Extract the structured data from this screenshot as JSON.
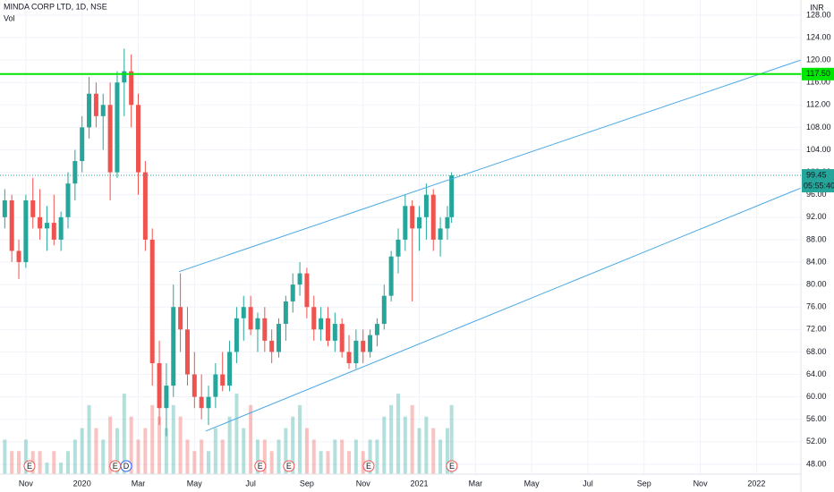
{
  "chart_data": {
    "type": "candlestick",
    "title": "MINDA CORP LTD, 1D, NSE",
    "volume_label": "Vol",
    "currency": "INR",
    "up_color": "#26a69a",
    "down_color": "#ef5350",
    "grid": true,
    "xlim": [
      -0.92,
      27.58
    ],
    "xticks": [
      {
        "value": 0,
        "label": "Nov"
      },
      {
        "value": 2,
        "label": "2020"
      },
      {
        "value": 4,
        "label": "Mar"
      },
      {
        "value": 6,
        "label": "May"
      },
      {
        "value": 8,
        "label": "Jul"
      },
      {
        "value": 10,
        "label": "Sep"
      },
      {
        "value": 12,
        "label": "Nov"
      },
      {
        "value": 14,
        "label": "2021"
      },
      {
        "value": 16,
        "label": "Mar"
      },
      {
        "value": 18,
        "label": "May"
      },
      {
        "value": 20,
        "label": "Jul"
      },
      {
        "value": 22,
        "label": "Sep"
      },
      {
        "value": 24,
        "label": "Nov"
      },
      {
        "value": 26,
        "label": "2022"
      }
    ],
    "ylim": [
      46.24,
      130.69
    ],
    "yticks": [
      {
        "value": 48,
        "label": "48.00"
      },
      {
        "value": 52,
        "label": "52.00"
      },
      {
        "value": 56,
        "label": "56.00"
      },
      {
        "value": 60,
        "label": "60.00"
      },
      {
        "value": 64,
        "label": "64.00"
      },
      {
        "value": 68,
        "label": "68.00"
      },
      {
        "value": 72,
        "label": "72.00"
      },
      {
        "value": 76,
        "label": "76.00"
      },
      {
        "value": 80,
        "label": "80.00"
      },
      {
        "value": 84,
        "label": "84.00"
      },
      {
        "value": 88,
        "label": "88.00"
      },
      {
        "value": 92,
        "label": "92.00"
      },
      {
        "value": 96,
        "label": "96.00"
      },
      {
        "value": 100,
        "label": "100.00"
      },
      {
        "value": 104,
        "label": "104.00"
      },
      {
        "value": 108,
        "label": "108.00"
      },
      {
        "value": 112,
        "label": "112.00"
      },
      {
        "value": 116,
        "label": "116.00"
      },
      {
        "value": 120,
        "label": "120.00"
      },
      {
        "value": 124,
        "label": "124.00"
      },
      {
        "value": 128,
        "label": "128.00"
      }
    ],
    "x": [
      -0.75,
      -0.5,
      -0.25,
      0,
      0.25,
      0.5,
      0.75,
      1,
      1.25,
      1.5,
      1.75,
      2,
      2.25,
      2.5,
      2.75,
      3,
      3.25,
      3.5,
      3.75,
      4,
      4.25,
      4.5,
      4.75,
      5,
      5.25,
      5.5,
      5.75,
      6,
      6.25,
      6.5,
      6.75,
      7,
      7.25,
      7.5,
      7.75,
      8,
      8.25,
      8.5,
      8.75,
      9,
      9.25,
      9.5,
      9.75,
      10,
      10.25,
      10.5,
      10.75,
      11,
      11.25,
      11.5,
      11.75,
      12,
      12.25,
      12.5,
      12.75,
      13,
      13.25,
      13.5,
      13.75,
      14,
      14.25,
      14.5,
      14.75,
      15,
      15.15
    ],
    "open": [
      92,
      95,
      86,
      84,
      95,
      92,
      90,
      91,
      88,
      92,
      98,
      102,
      108,
      114,
      110,
      112,
      100,
      116,
      118,
      112,
      100,
      88,
      66,
      58,
      62,
      76,
      72,
      64,
      60,
      58,
      60,
      64,
      62,
      68,
      74,
      76,
      72,
      74,
      70,
      68,
      73,
      77,
      80,
      82,
      76,
      72,
      74,
      70,
      73,
      68,
      66,
      70,
      68,
      71,
      73,
      78,
      85,
      88,
      94,
      90,
      92,
      96,
      88,
      90,
      92
    ],
    "high": [
      97,
      96,
      88,
      96,
      99,
      97,
      94,
      96,
      93,
      100,
      104,
      110,
      117,
      116,
      114,
      116,
      118,
      122,
      121,
      114,
      102,
      90,
      70,
      66,
      80,
      82,
      76,
      68,
      64,
      62,
      66,
      68,
      70,
      76,
      78,
      78,
      75,
      76,
      72,
      74,
      78,
      82,
      84,
      83,
      78,
      76,
      76,
      75,
      74,
      71,
      72,
      72,
      72,
      74,
      80,
      86,
      90,
      96,
      95,
      94,
      98,
      97,
      92,
      94,
      100
    ],
    "low": [
      90,
      84,
      81,
      83,
      90,
      88,
      86,
      87,
      86,
      90,
      95,
      100,
      106,
      108,
      104,
      95,
      99,
      110,
      108,
      96,
      86,
      62,
      55,
      53,
      60,
      68,
      62,
      58,
      56,
      55,
      58,
      61,
      61,
      66,
      70,
      71,
      68,
      68,
      66,
      67,
      70,
      75,
      78,
      74,
      70,
      70,
      69,
      68,
      67,
      65,
      65,
      66,
      67,
      69,
      72,
      77,
      82,
      86,
      77,
      86,
      88,
      86,
      85,
      88,
      91
    ],
    "close": [
      95,
      86,
      84,
      95,
      92,
      90,
      91,
      88,
      92,
      98,
      102,
      108,
      114,
      110,
      112,
      100,
      116,
      118,
      112,
      100,
      88,
      66,
      58,
      62,
      76,
      72,
      64,
      60,
      58,
      60,
      64,
      62,
      68,
      74,
      76,
      72,
      74,
      70,
      68,
      73,
      77,
      80,
      82,
      76,
      72,
      74,
      70,
      73,
      68,
      66,
      70,
      68,
      71,
      73,
      78,
      85,
      88,
      94,
      90,
      92,
      96,
      88,
      90,
      92,
      99.45
    ],
    "volume": [
      3,
      2,
      2,
      3,
      2,
      2,
      1,
      2,
      1,
      2,
      3,
      4,
      6,
      4,
      3,
      5,
      4,
      7,
      5,
      3,
      4,
      6,
      5,
      4,
      6,
      5,
      3,
      2,
      3,
      2,
      4,
      3,
      5,
      7,
      4,
      6,
      3,
      3,
      2,
      3,
      4,
      5,
      6,
      4,
      3,
      2,
      2,
      3,
      3,
      2,
      3,
      2,
      3,
      3,
      5,
      6,
      7,
      5,
      6,
      4,
      5,
      4,
      3,
      4,
      6
    ],
    "last_price": {
      "value": 99.45,
      "label": "99.45",
      "countdown": "05:55:40"
    },
    "horizontal_line": {
      "value": 117.5,
      "label": "117.50",
      "color": "#00e600"
    },
    "trendlines": [
      {
        "x": [
          5.45,
          27.58
        ],
        "y": [
          82.3,
          120
        ],
        "color": "#4aa8e6"
      },
      {
        "x": [
          6.4,
          27.58
        ],
        "y": [
          53.9,
          97.2
        ],
        "color": "#4aa8e6"
      }
    ],
    "events": [
      {
        "x": 0.13,
        "label": "E"
      },
      {
        "x": 3.18,
        "label": "E"
      },
      {
        "x": 3.57,
        "label": "D"
      },
      {
        "x": 8.34,
        "label": "E"
      },
      {
        "x": 9.36,
        "label": "E"
      },
      {
        "x": 12.2,
        "label": "E"
      },
      {
        "x": 15.16,
        "label": "E"
      }
    ]
  }
}
